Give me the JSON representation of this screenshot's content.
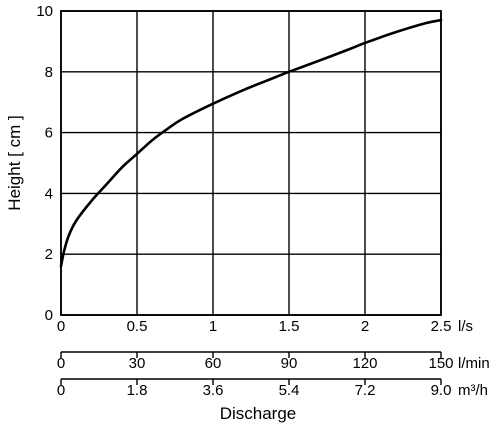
{
  "chart_data": {
    "type": "line",
    "title": "",
    "ylabel": "Height [ cm ]",
    "xlabel": "Discharge",
    "grid": true,
    "xlim": [
      0,
      2.5
    ],
    "ylim": [
      0,
      10
    ],
    "y_ticks": [
      "0",
      "2",
      "4",
      "6",
      "8",
      "10"
    ],
    "x_axes": [
      {
        "unit": "l/s",
        "tick_values": [
          0,
          0.5,
          1,
          1.5,
          2,
          2.5
        ],
        "tick_labels": [
          "0",
          "0.5",
          "1",
          "1.5",
          "2",
          "2.5"
        ]
      },
      {
        "unit": "l/min",
        "tick_values": [
          0,
          0.5,
          1,
          1.5,
          2,
          2.5
        ],
        "tick_labels": [
          "0",
          "30",
          "60",
          "90",
          "120",
          "150"
        ]
      },
      {
        "unit": "m³/h",
        "tick_values": [
          0,
          0.5,
          1,
          1.5,
          2,
          2.5
        ],
        "tick_labels": [
          "0",
          "1.8",
          "3.6",
          "5.4",
          "7.2",
          "9.0"
        ]
      }
    ],
    "series": [
      {
        "x": [
          0,
          0.02,
          0.05,
          0.1,
          0.2,
          0.3,
          0.4,
          0.5,
          0.6,
          0.7,
          0.8,
          1.0,
          1.2,
          1.4,
          1.5,
          1.7,
          1.9,
          2.0,
          2.2,
          2.4,
          2.5
        ],
        "y": [
          1.6,
          2.1,
          2.6,
          3.1,
          3.75,
          4.3,
          4.85,
          5.3,
          5.75,
          6.12,
          6.45,
          6.95,
          7.4,
          7.8,
          8.0,
          8.37,
          8.75,
          8.95,
          9.3,
          9.6,
          9.7
        ]
      }
    ]
  }
}
